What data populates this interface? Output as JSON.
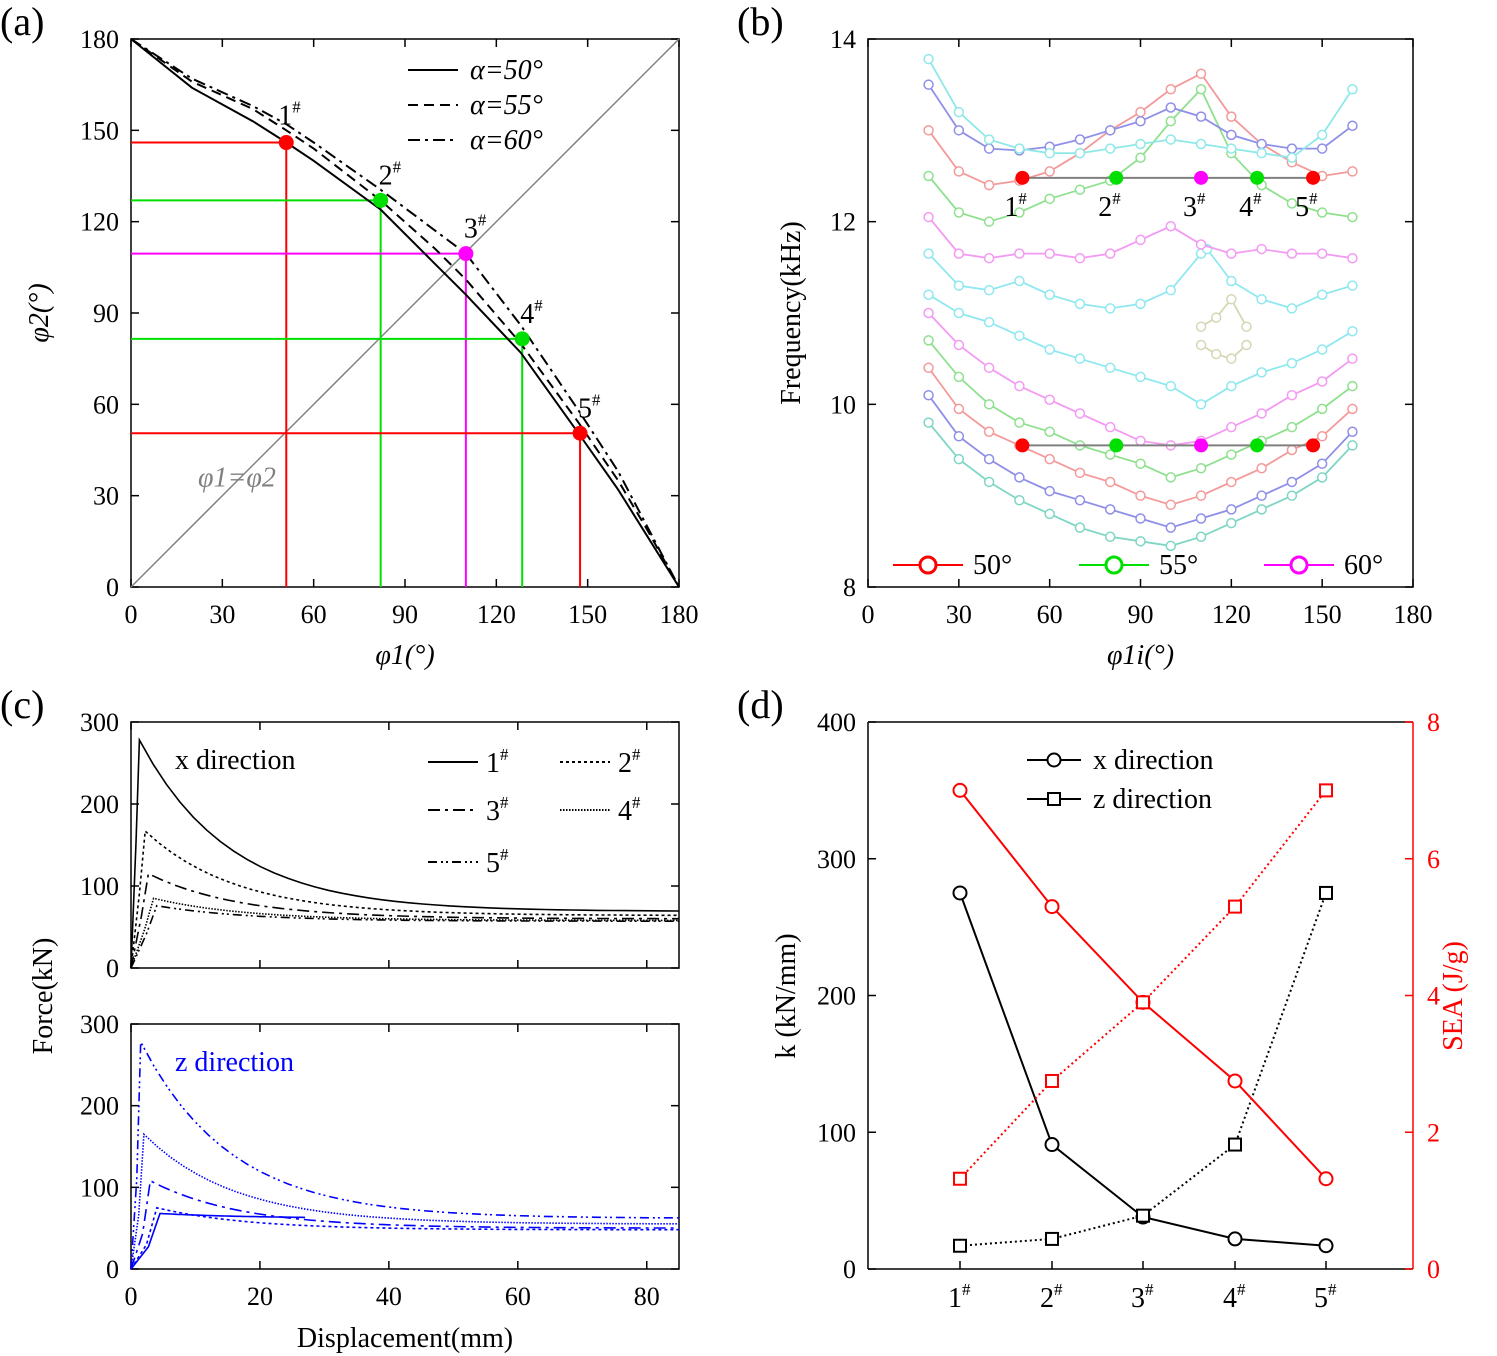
{
  "chart_data": [
    {
      "panel": "(a)",
      "type": "line",
      "xlabel": "φ1(°)",
      "ylabel": "φ2(°)",
      "xlim": [
        0,
        180
      ],
      "ylim": [
        0,
        180
      ],
      "xticks": [
        0,
        30,
        60,
        90,
        120,
        150,
        180
      ],
      "yticks": [
        0,
        30,
        60,
        90,
        120,
        150,
        180
      ],
      "diagonal_label": "φ1=φ2",
      "series": [
        {
          "name": "α=50°",
          "style": "solid",
          "x": [
            0,
            20,
            40,
            51,
            60,
            82,
            100,
            110,
            128,
            147,
            160,
            170,
            180
          ],
          "y": [
            180,
            164,
            153,
            146,
            140,
            124,
            106,
            96,
            77,
            50.5,
            32,
            16,
            0
          ]
        },
        {
          "name": "α=55°",
          "style": "dashed",
          "x": [
            0,
            20,
            40,
            51,
            60,
            82,
            100,
            110,
            128,
            147,
            160,
            170,
            180
          ],
          "y": [
            180,
            166,
            157,
            150,
            144,
            127,
            111,
            101,
            80,
            54,
            35,
            18,
            0
          ]
        },
        {
          "name": "α=60°",
          "style": "dashdot",
          "x": [
            0,
            20,
            40,
            51,
            60,
            82,
            100,
            110,
            128,
            147,
            160,
            170,
            180
          ],
          "y": [
            180,
            167,
            158,
            152,
            146,
            130.5,
            117,
            109.5,
            86,
            58,
            38,
            19,
            0
          ]
        }
      ],
      "points": [
        {
          "label": "1",
          "sup": "#",
          "x": 51,
          "y": 146,
          "color": "#ff0000"
        },
        {
          "label": "2",
          "sup": "#",
          "x": 82,
          "y": 127,
          "color": "#00e000"
        },
        {
          "label": "3",
          "sup": "#",
          "x": 110,
          "y": 109.5,
          "color": "#ff00ff"
        },
        {
          "label": "4",
          "sup": "#",
          "x": 128.5,
          "y": 81.5,
          "color": "#00e000"
        },
        {
          "label": "5",
          "sup": "#",
          "x": 147.5,
          "y": 50.5,
          "color": "#ff0000"
        }
      ],
      "legend": [
        "α=50°",
        "α=55°",
        "α=60°"
      ]
    },
    {
      "panel": "(b)",
      "type": "line",
      "xlabel": "φ1i(°)",
      "ylabel": "Frequency(kHz)",
      "xlim": [
        0,
        180
      ],
      "ylim": [
        8,
        14
      ],
      "xticks": [
        0,
        30,
        60,
        90,
        120,
        150,
        180
      ],
      "yticks": [
        8,
        10,
        12,
        14
      ],
      "series": [
        {
          "color": "#7fd6c4",
          "x": [
            20,
            30,
            40,
            50,
            60,
            70,
            80,
            90,
            100,
            110,
            120,
            130,
            140,
            150,
            160
          ],
          "y": [
            9.8,
            9.4,
            9.15,
            8.95,
            8.8,
            8.65,
            8.55,
            8.5,
            8.45,
            8.55,
            8.7,
            8.85,
            9.0,
            9.2,
            9.55
          ]
        },
        {
          "color": "#8f8fe8",
          "x": [
            20,
            30,
            40,
            50,
            60,
            70,
            80,
            90,
            100,
            110,
            120,
            130,
            140,
            150,
            160
          ],
          "y": [
            10.1,
            9.65,
            9.4,
            9.2,
            9.05,
            8.95,
            8.85,
            8.75,
            8.65,
            8.75,
            8.85,
            9.0,
            9.15,
            9.35,
            9.7
          ]
        },
        {
          "color": "#f39a9a",
          "x": [
            20,
            30,
            40,
            50,
            60,
            70,
            80,
            90,
            100,
            110,
            120,
            130,
            140,
            150,
            160
          ],
          "y": [
            10.4,
            9.95,
            9.7,
            9.55,
            9.4,
            9.25,
            9.15,
            9.0,
            8.9,
            9.0,
            9.15,
            9.3,
            9.5,
            9.65,
            9.95
          ]
        },
        {
          "color": "#8fe08f",
          "x": [
            20,
            30,
            40,
            50,
            60,
            70,
            80,
            90,
            100,
            110,
            120,
            130,
            140,
            150,
            160
          ],
          "y": [
            10.7,
            10.3,
            10.0,
            9.8,
            9.7,
            9.55,
            9.45,
            9.35,
            9.2,
            9.3,
            9.45,
            9.6,
            9.75,
            9.95,
            10.2
          ]
        },
        {
          "color": "#f39af3",
          "x": [
            20,
            30,
            40,
            50,
            60,
            70,
            80,
            90,
            100,
            110,
            120,
            130,
            140,
            150,
            160
          ],
          "y": [
            11.0,
            10.65,
            10.4,
            10.2,
            10.05,
            9.9,
            9.75,
            9.6,
            9.55,
            9.6,
            9.75,
            9.9,
            10.1,
            10.25,
            10.5
          ]
        },
        {
          "color": "#8fe8f0",
          "x": [
            20,
            30,
            40,
            50,
            60,
            70,
            80,
            90,
            100,
            110,
            120,
            130,
            140,
            150,
            160
          ],
          "y": [
            11.2,
            11.0,
            10.9,
            10.75,
            10.6,
            10.5,
            10.4,
            10.3,
            10.2,
            10.0,
            10.2,
            10.35,
            10.45,
            10.6,
            10.8
          ]
        },
        {
          "color": "#8fe8f0",
          "x": [
            20,
            30,
            40,
            50,
            60,
            70,
            80,
            90,
            100,
            110,
            112,
            120,
            130,
            140,
            150,
            160
          ],
          "y": [
            11.65,
            11.3,
            11.25,
            11.35,
            11.2,
            11.1,
            11.05,
            11.1,
            11.25,
            11.65,
            11.7,
            11.35,
            11.15,
            11.05,
            11.2,
            11.3
          ]
        },
        {
          "color": "#f39af3",
          "x": [
            20,
            30,
            40,
            50,
            60,
            70,
            80,
            90,
            100,
            110,
            120,
            130,
            140,
            150,
            160
          ],
          "y": [
            12.05,
            11.65,
            11.6,
            11.65,
            11.65,
            11.6,
            11.65,
            11.8,
            11.95,
            11.75,
            11.65,
            11.7,
            11.65,
            11.65,
            11.6
          ]
        },
        {
          "color": "#8fe08f",
          "x": [
            20,
            30,
            40,
            50,
            60,
            70,
            80,
            90,
            100,
            110,
            120,
            130,
            140,
            150,
            160
          ],
          "y": [
            12.5,
            12.1,
            12.0,
            12.1,
            12.25,
            12.35,
            12.45,
            12.7,
            13.1,
            13.45,
            12.75,
            12.4,
            12.2,
            12.1,
            12.05
          ]
        },
        {
          "color": "#f39a9a",
          "x": [
            20,
            30,
            40,
            50,
            60,
            70,
            80,
            90,
            100,
            110,
            120,
            130,
            140,
            150,
            160
          ],
          "y": [
            13.0,
            12.55,
            12.4,
            12.45,
            12.55,
            12.75,
            13.0,
            13.2,
            13.45,
            13.62,
            13.15,
            12.85,
            12.65,
            12.5,
            12.55
          ]
        },
        {
          "color": "#8f8fe8",
          "x": [
            20,
            30,
            40,
            50,
            60,
            70,
            80,
            90,
            100,
            110,
            120,
            130,
            140,
            150,
            160
          ],
          "y": [
            13.5,
            13.0,
            12.8,
            12.78,
            12.82,
            12.9,
            13.0,
            13.1,
            13.25,
            13.15,
            12.95,
            12.85,
            12.8,
            12.8,
            13.05
          ]
        },
        {
          "color": "#8fe8e8",
          "x": [
            20,
            30,
            40,
            50,
            60,
            70,
            80,
            90,
            100,
            110,
            120,
            130,
            140,
            150,
            160
          ],
          "y": [
            13.78,
            13.2,
            12.9,
            12.8,
            12.75,
            12.75,
            12.8,
            12.85,
            12.9,
            12.85,
            12.8,
            12.75,
            12.7,
            12.95,
            13.45
          ]
        },
        {
          "color": "#d6d6b4",
          "x": [
            110,
            115,
            120,
            125
          ],
          "y": [
            10.85,
            10.95,
            11.15,
            10.85
          ]
        },
        {
          "color": "#d6d6b4",
          "x": [
            110,
            115,
            120,
            125
          ],
          "y": [
            10.65,
            10.55,
            10.5,
            10.65
          ]
        }
      ],
      "marker_rows": [
        {
          "y": 12.48,
          "points": [
            {
              "label": "1",
              "sup": "#",
              "x": 51,
              "color": "#ff0000"
            },
            {
              "label": "2",
              "sup": "#",
              "x": 82,
              "color": "#00e000"
            },
            {
              "label": "3",
              "sup": "#",
              "x": 110,
              "color": "#ff00ff"
            },
            {
              "label": "4",
              "sup": "#",
              "x": 128.5,
              "color": "#00e000"
            },
            {
              "label": "5",
              "sup": "#",
              "x": 147,
              "color": "#ff0000"
            }
          ]
        },
        {
          "y": 9.55,
          "points": [
            {
              "x": 51,
              "color": "#ff0000"
            },
            {
              "x": 82,
              "color": "#00e000"
            },
            {
              "x": 110,
              "color": "#ff00ff"
            },
            {
              "x": 128.5,
              "color": "#00e000"
            },
            {
              "x": 147,
              "color": "#ff0000"
            }
          ]
        }
      ],
      "legend": [
        {
          "name": "50°",
          "color": "#ff0000"
        },
        {
          "name": "55°",
          "color": "#00e000"
        },
        {
          "name": "60°",
          "color": "#ff00ff"
        }
      ]
    },
    {
      "panel": "(c)",
      "type": "line",
      "xlabel": "Displacement(mm)",
      "ylabel": "Force(kN)",
      "xlim": [
        0,
        85
      ],
      "xticks": [
        0,
        20,
        40,
        60,
        80
      ],
      "subplots": [
        {
          "annotation": "x direction",
          "color": "#000000",
          "ylim": [
            0,
            300
          ],
          "yticks": [
            0,
            100,
            200,
            300
          ],
          "series": [
            {
              "name": "1",
              "sup": "#",
              "style": "solid",
              "peak_x": 1.3,
              "peak": 278,
              "final": 69
            },
            {
              "name": "2",
              "sup": "#",
              "style": "dotted",
              "peak_x": 2.2,
              "peak": 167,
              "final": 64
            },
            {
              "name": "3",
              "sup": "#",
              "style": "dashdot",
              "peak_x": 2.7,
              "peak": 115,
              "final": 60
            },
            {
              "name": "4",
              "sup": "#",
              "style": "densedot",
              "peak_x": 3.5,
              "peak": 85,
              "final": 58
            },
            {
              "name": "5",
              "sup": "#",
              "style": "dashdotdot",
              "peak_x": 4.0,
              "peak": 76,
              "final": 57
            }
          ],
          "legend": [
            "1#",
            "2#",
            "3#",
            "4#",
            "5#"
          ]
        },
        {
          "annotation": "z direction",
          "color": "#0000ff",
          "ylim": [
            0,
            300
          ],
          "yticks": [
            0,
            100,
            200,
            300
          ],
          "series": [
            {
              "name": "1",
              "sup": "#",
              "style": "solid",
              "peak_x": 4.5,
              "peak": 68,
              "final": 62,
              "end_x": 27
            },
            {
              "name": "2",
              "sup": "#",
              "style": "dotted",
              "peak_x": 4.0,
              "peak": 75,
              "final": 48
            },
            {
              "name": "3",
              "sup": "#",
              "style": "dashdot",
              "peak_x": 3.0,
              "peak": 108,
              "final": 50
            },
            {
              "name": "4",
              "sup": "#",
              "style": "densedot",
              "peak_x": 2.0,
              "peak": 165,
              "final": 55
            },
            {
              "name": "5",
              "sup": "#",
              "style": "dashdotdot",
              "peak_x": 1.5,
              "peak": 278,
              "final": 62
            }
          ]
        }
      ]
    },
    {
      "panel": "(d)",
      "type": "line",
      "categories": [
        "1",
        "2",
        "3",
        "4",
        "5"
      ],
      "category_sup": "#",
      "ylabel": "k (kN/mm)",
      "ylabel2": "SEA (J/g)",
      "ylim": [
        0,
        400
      ],
      "y2lim": [
        0,
        8
      ],
      "yticks": [
        0,
        100,
        200,
        300,
        400
      ],
      "y2ticks": [
        0,
        2,
        4,
        6,
        8
      ],
      "series": [
        {
          "name": "x direction",
          "axis": "k",
          "marker": "circle",
          "color": "#000000",
          "style": "solid",
          "values": [
            275,
            91,
            38,
            22,
            17
          ]
        },
        {
          "name": "z direction",
          "axis": "k",
          "marker": "square",
          "color": "#000000",
          "style": "dotted",
          "values": [
            17,
            22,
            39,
            91,
            275
          ]
        },
        {
          "axis": "SEA",
          "marker": "circle",
          "color": "#ff0000",
          "style": "solid",
          "values": [
            7.0,
            5.3,
            3.9,
            2.75,
            1.32
          ]
        },
        {
          "axis": "SEA",
          "marker": "square",
          "color": "#ff0000",
          "style": "dotted",
          "values": [
            1.32,
            2.75,
            3.9,
            5.3,
            7.0
          ]
        }
      ],
      "legend": [
        "x direction",
        "z direction"
      ]
    }
  ]
}
